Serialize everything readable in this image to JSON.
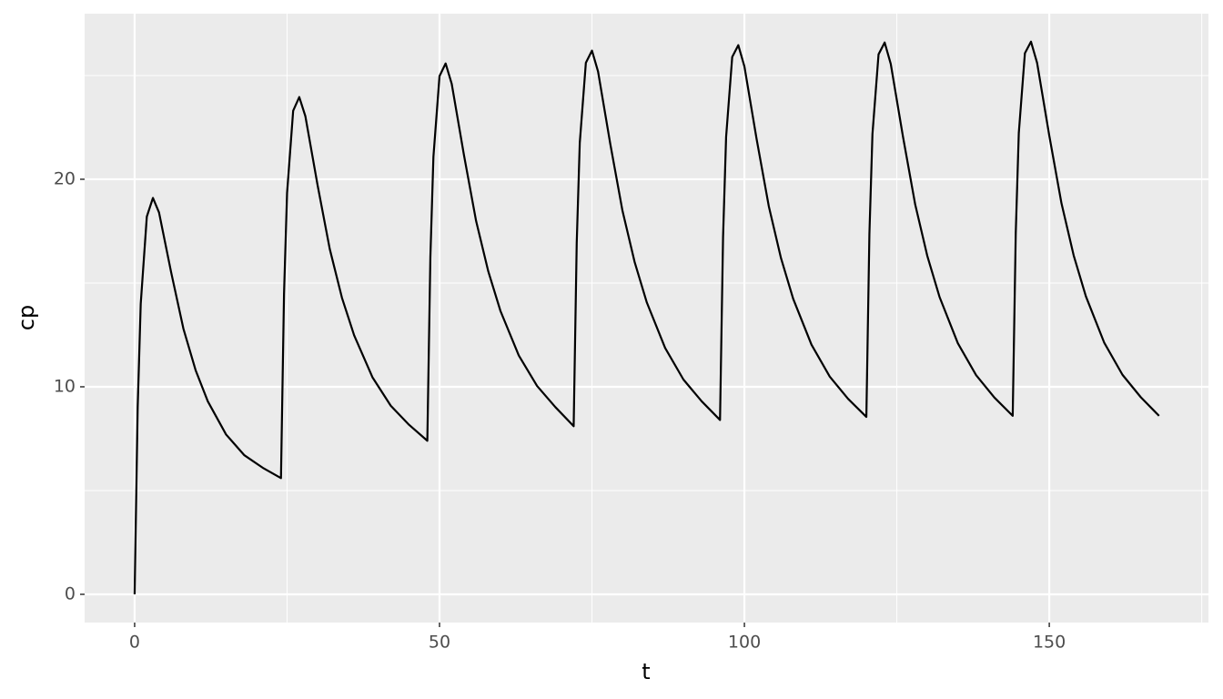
{
  "chart_data": {
    "type": "line",
    "x_label": "t",
    "y_label": "cp",
    "x": [
      0,
      0.5,
      1,
      2,
      3,
      4,
      6,
      8,
      10,
      12,
      15,
      18,
      21,
      24,
      24.5,
      25,
      26,
      27,
      28,
      30,
      32,
      34,
      36,
      39,
      42,
      45,
      48,
      48.5,
      49,
      50,
      51,
      52,
      54,
      56,
      58,
      60,
      63,
      66,
      69,
      72,
      72.5,
      73,
      74,
      75,
      76,
      78,
      80,
      82,
      84,
      87,
      90,
      93,
      96,
      96.5,
      97,
      98,
      99,
      100,
      102,
      104,
      106,
      108,
      111,
      114,
      117,
      120,
      120.5,
      121,
      122,
      123,
      124,
      126,
      128,
      130,
      132,
      135,
      138,
      141,
      144,
      144.5,
      145,
      146,
      147,
      148,
      150,
      152,
      154,
      156,
      159,
      162,
      165,
      168
    ],
    "series": [
      {
        "name": "cp",
        "color": "#000000",
        "values": [
          0,
          9,
          14,
          18.2,
          19.1,
          18.4,
          15.5,
          12.8,
          10.8,
          9.3,
          7.7,
          6.7,
          6.1,
          5.6,
          14.47,
          19.34,
          23.3,
          23.96,
          23.04,
          19.72,
          16.64,
          14.29,
          12.48,
          10.46,
          9.09,
          8.17,
          7.4,
          16.24,
          21.08,
          24.97,
          25.58,
          24.6,
          21.18,
          17.99,
          15.56,
          13.65,
          11.51,
          10.04,
          9.02,
          8.1,
          16.92,
          21.75,
          25.61,
          26.2,
          25.19,
          21.71,
          18.49,
          16.01,
          14.06,
          11.87,
          10.35,
          9.3,
          8.4,
          17.22,
          22.04,
          25.89,
          26.46,
          25.44,
          21.94,
          18.7,
          16.2,
          14.24,
          12.03,
          10.49,
          9.42,
          8.55,
          17.36,
          22.18,
          26.02,
          26.59,
          25.56,
          22.06,
          18.8,
          16.3,
          14.33,
          12.1,
          10.56,
          9.48,
          8.6,
          17.41,
          22.23,
          26.07,
          26.63,
          25.61,
          22.1,
          18.84,
          16.33,
          14.36,
          12.13,
          10.58,
          9.5,
          8.6
        ]
      }
    ],
    "xlim": [
      -8.2,
      176.1
    ],
    "ylim": [
      -1.36,
      27.98
    ],
    "xticks": [
      0,
      50,
      100,
      150
    ],
    "yticks": [
      0,
      10,
      20
    ],
    "xminor": [
      25,
      75,
      125,
      175
    ],
    "yminor": [
      5,
      15,
      25
    ],
    "grid": true
  }
}
